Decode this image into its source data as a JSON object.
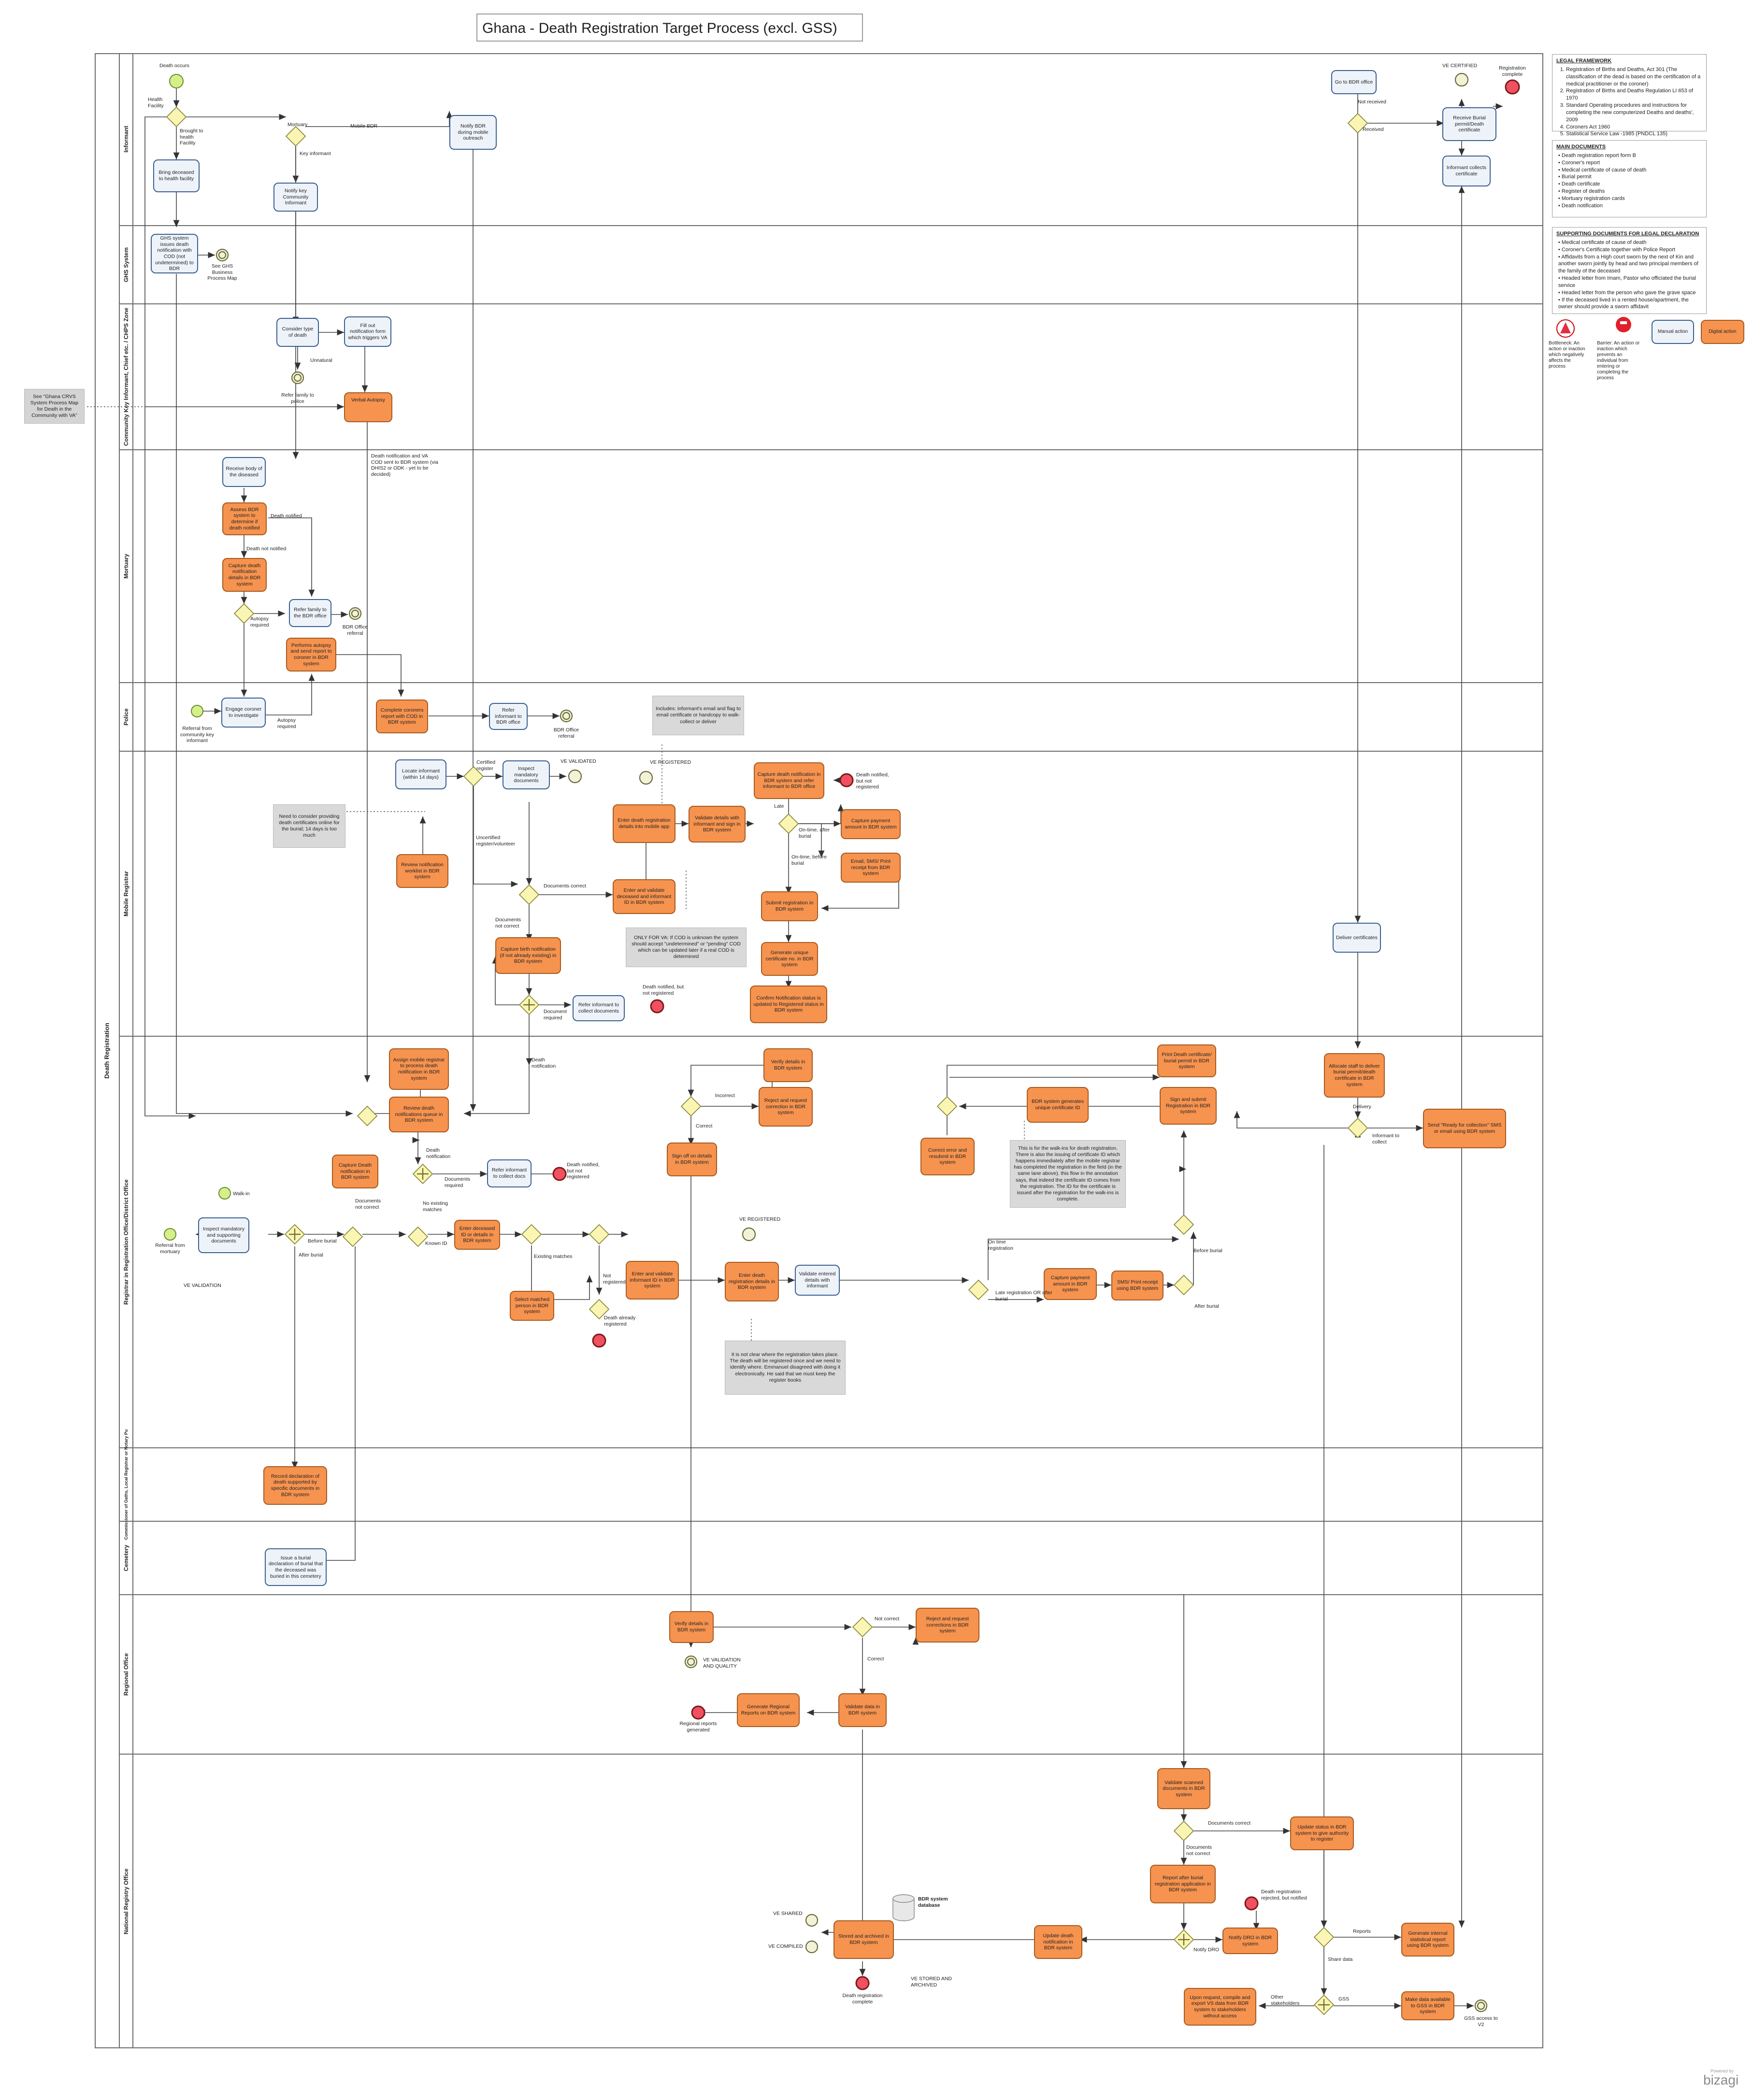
{
  "title": "Ghana - Death Registration Target Process (excl. GSS)",
  "pool": "Death Registration",
  "lanes": [
    {
      "id": "informant",
      "label": "Informant"
    },
    {
      "id": "ghs",
      "label": "GHS System"
    },
    {
      "id": "community",
      "label": "Community Key Informant, Chief etc. / CHPS Zone"
    },
    {
      "id": "mortuary",
      "label": "Mortuary"
    },
    {
      "id": "police",
      "label": "Police"
    },
    {
      "id": "mobile",
      "label": "Mobile Registrar"
    },
    {
      "id": "registrar",
      "label": "Registrar in Registration Office/District Office"
    },
    {
      "id": "commissioner",
      "label": "Commissioner of Oaths, Local Registrar or Notary Pu"
    },
    {
      "id": "cemetery",
      "label": "Cemetery"
    },
    {
      "id": "regional",
      "label": "Regional Office"
    },
    {
      "id": "national",
      "label": "National Registry Office"
    }
  ],
  "tasks": {
    "t01": "Bring deceased to health facility",
    "t02": "Notify key Community Informant",
    "t03": "Notify BDR during mobile outreach",
    "t04": "GHS system issues death notification with COD (not undetermined) to BDR",
    "t05": "Consider type of death",
    "t06": "Fill out notification form which triggers VA",
    "t07": "Verbal Autopsy",
    "t08": "Receive body of the diseased",
    "t09": "Assess BDR system to determine if death notified",
    "t10": "Capture death notification details in BDR system",
    "t11": "Refer family to the BDR office",
    "t12": "Performs autopsy and send report to coroner in BDR system",
    "t13": "Engage coroner to investigate",
    "t14": "Complete coroners report with COD in BDR system",
    "t15": "Refer informant to BDR office",
    "t16": "Locate informant (within 14 days)",
    "t17": "Inspect mandatory documents",
    "t18": "Review notification worklist in BDR system",
    "t19": "Capture birth notification (if not already existing) in BDR system",
    "t20": "Refer informant to collect documents",
    "t21": "Enter and validate deceased and informant ID in BDR system",
    "t22": "Enter death registration details into mobile app",
    "t23": "Validate details with informant and sign in BDR system",
    "t24": "Capture death notification in BDR system and refer informant to BDR office",
    "t25": "Capture payment amount in BDR system",
    "t26": "Email, SMS/ Print receipt from BDR system",
    "t27": "Submit registration in BDR system",
    "t28": "Generate unique certificate no. in BDR system",
    "t29": "Confirm Notification status is updated to Registered status in BDR system",
    "t30": "Deliver certificates",
    "t31": "Assign mobile registrar to process death notification in BDR system",
    "t32": "Review death notifications queue in BDR system",
    "t33": "Capture Death notification in BDR system",
    "t34": "Refer informant to collect docs",
    "t35": "Inspect mandatory and supporting documents",
    "t36": "Enter deceased ID or details in BDR system",
    "t37": "Select matched person in BDR system",
    "t38": "Enter and validate informant ID in BDR system",
    "t39": "Enter death registration details in BDR system",
    "t40": "Validate entered details with informant",
    "t41": "Verify details in BDR system",
    "t42": "Reject and request correction in BDR system",
    "t43": "Sign off on details in BDR system",
    "t44": "Correct error and resubmit in BDR system",
    "t45": "BDR system generates unique certificate ID",
    "t46": "Print Death certificate/ burial permit in BDR system",
    "t47": "Sign and submit Registration in BDR system",
    "t48": "Allocate staff to deliver burial permit/death certificate in BDR system",
    "t49": "Send \"Ready for collection\" SMS or email using BDR system",
    "t50": "Capture payment amount in BDR system",
    "t51": "SMS/ Print receipt using BDR system",
    "t52": "Go to BDR office",
    "t53": "Receive Burial permit/Death certificate",
    "t54": "Informant collects certificate",
    "t55": "Record declaration of death supported by specific documents in BDR system",
    "t56": "Issue a burial declaration of burial that the deceased was buried in this cemetery",
    "t57": "Verify details in BDR system",
    "t58": "Reject and request corrections in BDR system",
    "t59": "Validate data in BDR system",
    "t60": "Generate Regional Reports on BDR system",
    "t61": "Validate scanned documents in BDR system",
    "t62": "Update status in BDR system to give authority to register",
    "t63": "Report after burial registration application in BDR system",
    "t64": "Notify DRO in BDR system",
    "t65": "Update death notification in BDR system",
    "t66": "Stored and archived in BDR system",
    "t67": "Generate internal statistical report using BDR system",
    "t68": "Upon request, compile and export VS data from BDR system to stakeholders without access",
    "t69": "Make data available to GSS in BDR system",
    "db": "BDR system database"
  },
  "labels": {
    "death_occurs": "Death occurs",
    "health_facility_short": "Health Facility",
    "brought_hf": "Brought to health Facility",
    "mortuary": "Mortuary",
    "mobile_bdr": "Mobile BDR",
    "key_informant": "Key informant",
    "see_ghs": "See GHS Business Process Map",
    "unnatural": "Unnatural",
    "refer_family": "Refer family to police",
    "death_notification_va": "Death notification and VA COD sent to BDR system (via DHIS2 or ODK - yet to be decided)",
    "death_notified": "Death notified",
    "death_not_notified": "Death not notified",
    "autopsy_required": "Autopsy required",
    "bdr_office_referral": "BDR Office referral",
    "referral_community": "Referral from community key informant",
    "autopsy_required2": "Autopsy required",
    "bdr_office_referral2": "BDR Office referral",
    "certified_register": "Certified register",
    "ve_validated": "VE VALIDATED",
    "ve_registered": "VE REGISTERED",
    "death_notified_not_reg": "Death notified, but not registered",
    "late": "Late",
    "on_time_after": "On-time, after burial",
    "on_time_before": "On-time, before burial",
    "uncertified": "Uncertified register/volunteer",
    "documents_correct": "Documents correct",
    "documents_not_correct": "Documents not correct",
    "document_required": "Document required",
    "death_notified_not_reg2": "Death notified, but not registered",
    "death_notification": "Death notification",
    "incorrect": "Incorrect",
    "correct": "Correct",
    "delivery": "Delivery",
    "informant_collect": "Informant to collect",
    "walk_in": "Walk-in",
    "referral_mortuary": "Referral from mortuary",
    "ve_validation": "VE VALIDATION",
    "before_burial": "Before burial",
    "after_burial": "After burial",
    "documents_not_correct2": "Documents not correct",
    "known_id": "Known ID",
    "no_existing": "No existing matches",
    "existing_matches": "Existing matches",
    "not_registered": "Not registered",
    "death_already": "Death already registered",
    "documents_required": "Documents required",
    "death_notification2": "Death notification",
    "death_notified_not_reg3": "Death notified, but not registered",
    "ve_registered2": "VE REGISTERED",
    "on_time_reg": "On time registration",
    "late_reg": "Late registration OR after burial",
    "before_burial2": "Before burial",
    "after_burial2": "After burial",
    "not_received": "Not received",
    "received": "Received",
    "ve_certified": "VE CERTIFIED",
    "registration_complete": "Registration complete",
    "not_correct": "Not correct",
    "correct2": "Correct",
    "ve_validation_quality": "VE VALIDATION AND QUALITY",
    "regional_reports": "Regional reports generated",
    "documents_correct2": "Documents correct",
    "documents_not_correct3": "Documents not correct",
    "death_reg_rejected": "Death registration rejected, but notified",
    "notify_dro": "Notify DRO",
    "reports": "Reports",
    "share_data": "Share data",
    "other_stakeholders": "Other stakeholders",
    "gss": "GSS",
    "ve_shared": "VE SHARED",
    "ve_compiled": "VE COMPILED",
    "ve_stored": "VE STORED AND ARCHIVED",
    "death_reg_complete": "Death registration complete",
    "gss_access": "GSS access to V2"
  },
  "notes": {
    "n1": "Includes: informant's email and flag to email certificate or handcopy to walk-collect or deliver",
    "n2": "Need to consider providing death certificates online for the burial; 14 days is too much",
    "n3": "ONLY FOR VA: If COD is unknown the system should accept \"undetermined\" or \"pending\" COD which can be updated later if a real COD is determined",
    "n4": "This is for the walk-ins for death registration. There is also the issuing of certificate ID which happens immediately after the mobile registrar has completed the registration in the field (in the same lane above). this flow in the annotation says, that indeed the certificate ID comes from the registration. The ID for the certificate is issued after the registration for the walk-ins is complete.",
    "n5": "It is not clear where the registration takes place. The death will be registered once and we need to identify where. Emmanuel disagreed with doing it electronically. He said that we must keep the register books"
  },
  "external_ref": "See \"Ghana CRVS System Process Map for Death in the Community with VA\"",
  "legal": {
    "heading": "LEGAL FRAMEWORK",
    "items": [
      "Registration of Births and Deaths, Act 301 (The classification of the dead is based on the certification of a medical practitioner or the coroner)",
      "Registration of Births and Deaths Regulation LI 653 of 1970",
      "Standard Operating procedures and instructions for completing the new computerized Deaths and deaths', 2009",
      "Coroners Act 1960",
      "Statistical Service Law -1985 (PNDCL 135)"
    ]
  },
  "main_docs": {
    "heading": "MAIN DOCUMENTS",
    "items": [
      "Death registration report form B",
      "Coroner's report",
      "Medical certificate of cause of death",
      "Burial permit",
      "Death certificate",
      "Register of deaths",
      "Mortuary registration cards",
      "Death notification"
    ]
  },
  "supporting_docs": {
    "heading": "SUPPORTING DOCUMENTS FOR LEGAL DECLARATION",
    "items": [
      "Medical certificate of cause of death",
      "Coroner's Certificate together with Police Report",
      "Affidavits from a High court sworn by the next of Kin and another sworn jointly by head and two principal members of the family of the deceased",
      "Headed letter from Imam, Pastor who officiated the burial service",
      "Headed letter from the person who gave the grave space",
      "If the deceased lived in a rented house/apartment, the owner should provide a sworn affidavit"
    ]
  },
  "legend": {
    "bottleneck": "Bottleneck: An action or inaction which negatively affects the process",
    "barrier": "Barrier: An action or inaction which prevents an individual from entering or completing the process",
    "manual": "Manual action",
    "digital": "Digital action"
  },
  "brand": "bizagi",
  "brand_small": "Powered by",
  "colors": {
    "digital": "#f6934f",
    "manual": "#eef3fa",
    "gateway": "#fbf5b4",
    "start": "#d5f08a",
    "end": "#f05060"
  }
}
